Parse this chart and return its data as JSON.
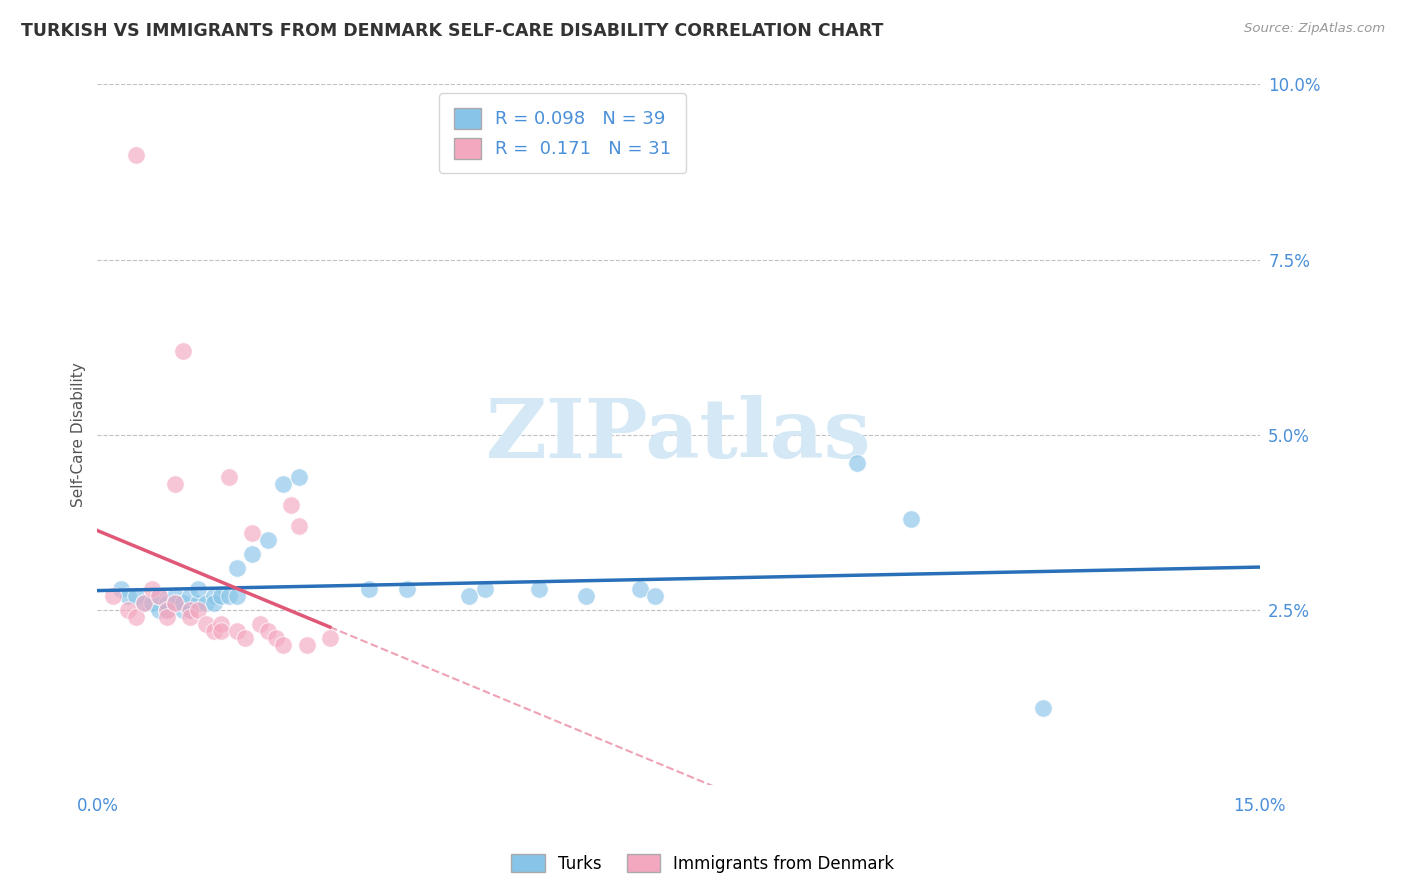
{
  "title": "TURKISH VS IMMIGRANTS FROM DENMARK SELF-CARE DISABILITY CORRELATION CHART",
  "source": "Source: ZipAtlas.com",
  "ylabel": "Self-Care Disability",
  "xlim": [
    0.0,
    0.15
  ],
  "ylim": [
    0.0,
    0.1
  ],
  "turks_R": 0.098,
  "turks_N": 39,
  "denmark_R": 0.171,
  "denmark_N": 31,
  "turks_color": "#88c4e8",
  "denmark_color": "#f4a8c0",
  "turks_line_color": "#2970b8",
  "denmark_line_color": "#e05878",
  "turks_scatter": [
    [
      0.003,
      0.028
    ],
    [
      0.004,
      0.027
    ],
    [
      0.005,
      0.027
    ],
    [
      0.006,
      0.026
    ],
    [
      0.007,
      0.026
    ],
    [
      0.008,
      0.025
    ],
    [
      0.008,
      0.027
    ],
    [
      0.009,
      0.025
    ],
    [
      0.009,
      0.026
    ],
    [
      0.01,
      0.027
    ],
    [
      0.01,
      0.026
    ],
    [
      0.011,
      0.025
    ],
    [
      0.011,
      0.026
    ],
    [
      0.012,
      0.025
    ],
    [
      0.012,
      0.027
    ],
    [
      0.013,
      0.026
    ],
    [
      0.013,
      0.028
    ],
    [
      0.014,
      0.026
    ],
    [
      0.015,
      0.027
    ],
    [
      0.015,
      0.026
    ],
    [
      0.016,
      0.027
    ],
    [
      0.017,
      0.027
    ],
    [
      0.018,
      0.027
    ],
    [
      0.018,
      0.031
    ],
    [
      0.02,
      0.033
    ],
    [
      0.022,
      0.035
    ],
    [
      0.024,
      0.043
    ],
    [
      0.026,
      0.044
    ],
    [
      0.035,
      0.028
    ],
    [
      0.04,
      0.028
    ],
    [
      0.048,
      0.027
    ],
    [
      0.05,
      0.028
    ],
    [
      0.057,
      0.028
    ],
    [
      0.063,
      0.027
    ],
    [
      0.07,
      0.028
    ],
    [
      0.072,
      0.027
    ],
    [
      0.098,
      0.046
    ],
    [
      0.105,
      0.038
    ],
    [
      0.122,
      0.011
    ]
  ],
  "denmark_scatter": [
    [
      0.002,
      0.027
    ],
    [
      0.004,
      0.025
    ],
    [
      0.005,
      0.024
    ],
    [
      0.005,
      0.09
    ],
    [
      0.006,
      0.026
    ],
    [
      0.007,
      0.028
    ],
    [
      0.008,
      0.027
    ],
    [
      0.009,
      0.025
    ],
    [
      0.009,
      0.024
    ],
    [
      0.01,
      0.026
    ],
    [
      0.01,
      0.043
    ],
    [
      0.011,
      0.062
    ],
    [
      0.012,
      0.025
    ],
    [
      0.012,
      0.024
    ],
    [
      0.013,
      0.025
    ],
    [
      0.014,
      0.023
    ],
    [
      0.015,
      0.022
    ],
    [
      0.016,
      0.023
    ],
    [
      0.016,
      0.022
    ],
    [
      0.017,
      0.044
    ],
    [
      0.018,
      0.022
    ],
    [
      0.019,
      0.021
    ],
    [
      0.02,
      0.036
    ],
    [
      0.021,
      0.023
    ],
    [
      0.022,
      0.022
    ],
    [
      0.023,
      0.021
    ],
    [
      0.024,
      0.02
    ],
    [
      0.025,
      0.04
    ],
    [
      0.026,
      0.037
    ],
    [
      0.027,
      0.02
    ],
    [
      0.03,
      0.021
    ]
  ],
  "watermark_text": "ZIPatlas",
  "watermark_color": "#d5e8f5",
  "background_color": "#ffffff",
  "grid_color": "#bbbbbb",
  "tick_color": "#4a90d9",
  "title_color": "#333333",
  "source_color": "#999999"
}
